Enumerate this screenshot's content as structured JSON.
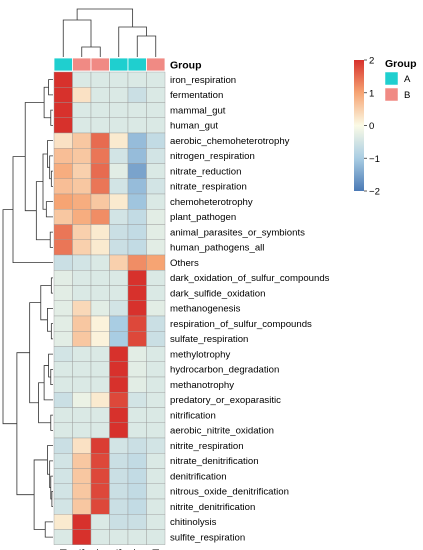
{
  "chart_data": {
    "type": "heatmap",
    "title": "",
    "columns": [
      "AM",
      "BB",
      "BT",
      "AB",
      "AT",
      "BM"
    ],
    "column_groups": [
      "A",
      "B",
      "B",
      "A",
      "A",
      "B"
    ],
    "group_annotation_label": "Group",
    "group_legend": {
      "title": "Group",
      "entries": [
        {
          "name": "A",
          "color": "#1fcfcf"
        },
        {
          "name": "B",
          "color": "#f08a84"
        }
      ]
    },
    "color_scale": {
      "min": -2,
      "max": 2,
      "ticks": [
        2,
        1,
        0,
        -1,
        -2
      ],
      "tick_labels": [
        "2",
        "1",
        "0",
        "−1",
        "−2"
      ],
      "low_color": "#4a79b5",
      "mid_color": "#fbfbe6",
      "high_color": "#d7312c"
    },
    "rows": [
      {
        "label": "iron_respiration",
        "values": [
          2.0,
          -0.4,
          -0.4,
          -0.4,
          -0.4,
          -0.4
        ]
      },
      {
        "label": "fermentation",
        "values": [
          2.0,
          0.3,
          -0.4,
          -0.4,
          -0.6,
          -0.4
        ]
      },
      {
        "label": "mammal_gut",
        "values": [
          2.0,
          -0.4,
          -0.4,
          -0.4,
          -0.4,
          -0.4
        ]
      },
      {
        "label": "human_gut",
        "values": [
          2.0,
          -0.4,
          -0.4,
          -0.4,
          -0.4,
          -0.4
        ]
      },
      {
        "label": "aerobic_chemoheterotrophy",
        "values": [
          0.3,
          0.6,
          1.5,
          0.2,
          -1.2,
          -0.7
        ]
      },
      {
        "label": "nitrogen_respiration",
        "values": [
          0.7,
          0.6,
          1.4,
          -0.5,
          -1.2,
          -0.5
        ]
      },
      {
        "label": "nitrate_reduction",
        "values": [
          0.9,
          0.5,
          1.5,
          -0.3,
          -1.5,
          -0.4
        ]
      },
      {
        "label": "nitrate_respiration",
        "values": [
          0.7,
          0.6,
          1.4,
          -0.5,
          -1.2,
          -0.5
        ]
      },
      {
        "label": "chemoheterotrophy",
        "values": [
          1.0,
          0.9,
          0.6,
          0.2,
          -1.1,
          -0.4
        ]
      },
      {
        "label": "plant_pathogen",
        "values": [
          0.6,
          0.9,
          1.2,
          -0.5,
          -0.7,
          -0.3
        ]
      },
      {
        "label": "animal_parasites_or_symbionts",
        "values": [
          1.4,
          0.5,
          0.2,
          -0.6,
          -0.7,
          -0.3
        ]
      },
      {
        "label": "human_pathogens_all",
        "values": [
          1.4,
          0.5,
          0.2,
          -0.6,
          -0.7,
          -0.3
        ]
      },
      {
        "label": "Others",
        "values": [
          -0.6,
          -0.5,
          -0.4,
          0.5,
          1.2,
          1.0
        ]
      },
      {
        "label": "dark_oxidation_of_sulfur_compounds",
        "values": [
          -0.3,
          -0.4,
          -0.4,
          -0.4,
          2.0,
          -0.4
        ]
      },
      {
        "label": "dark_sulfide_oxidation",
        "values": [
          -0.3,
          -0.4,
          -0.4,
          -0.4,
          2.0,
          -0.4
        ]
      },
      {
        "label": "methanogenesis",
        "values": [
          -0.3,
          0.4,
          -0.3,
          -0.5,
          2.0,
          -0.3
        ]
      },
      {
        "label": "respiration_of_sulfur_compounds",
        "values": [
          -0.3,
          0.6,
          0.1,
          -1.0,
          1.8,
          -0.6
        ]
      },
      {
        "label": "sulfate_respiration",
        "values": [
          -0.3,
          0.6,
          0.1,
          -1.0,
          1.8,
          -0.6
        ]
      },
      {
        "label": "methylotrophy",
        "values": [
          -0.5,
          -0.4,
          -0.4,
          2.0,
          -0.3,
          -0.4
        ]
      },
      {
        "label": "hydrocarbon_degradation",
        "values": [
          -0.4,
          -0.4,
          -0.4,
          2.0,
          -0.3,
          -0.4
        ]
      },
      {
        "label": "methanotrophy",
        "values": [
          -0.4,
          -0.4,
          -0.4,
          2.0,
          -0.3,
          -0.4
        ]
      },
      {
        "label": "predatory_or_exoparasitic",
        "values": [
          -0.6,
          -0.2,
          0.2,
          1.8,
          -0.5,
          -0.4
        ]
      },
      {
        "label": "nitrification",
        "values": [
          -0.4,
          -0.4,
          -0.4,
          2.0,
          -0.4,
          -0.4
        ]
      },
      {
        "label": "aerobic_nitrite_oxidation",
        "values": [
          -0.4,
          -0.4,
          -0.4,
          2.0,
          -0.4,
          -0.4
        ]
      },
      {
        "label": "nitrite_respiration",
        "values": [
          -0.6,
          0.3,
          1.9,
          -0.5,
          -0.6,
          -0.5
        ]
      },
      {
        "label": "nitrate_denitrification",
        "values": [
          -0.5,
          0.6,
          1.8,
          -0.6,
          -0.7,
          -0.4
        ]
      },
      {
        "label": "denitrification",
        "values": [
          -0.5,
          0.6,
          1.8,
          -0.6,
          -0.7,
          -0.4
        ]
      },
      {
        "label": "nitrous_oxide_denitrification",
        "values": [
          -0.5,
          0.6,
          1.8,
          -0.6,
          -0.7,
          -0.4
        ]
      },
      {
        "label": "nitrite_denitrification",
        "values": [
          -0.5,
          0.6,
          1.8,
          -0.6,
          -0.7,
          -0.4
        ]
      },
      {
        "label": "chitinolysis",
        "values": [
          0.2,
          2.0,
          -0.4,
          -0.6,
          -0.6,
          -0.4
        ]
      },
      {
        "label": "sulfite_respiration",
        "values": [
          -0.4,
          2.0,
          -0.4,
          -0.4,
          -0.4,
          -0.4
        ]
      }
    ]
  }
}
